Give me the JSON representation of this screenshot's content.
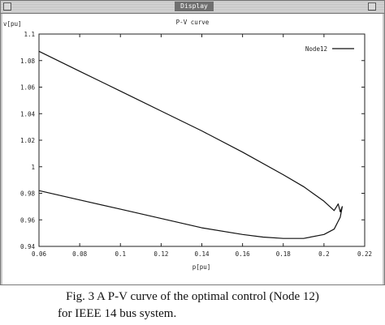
{
  "window": {
    "title": "Display"
  },
  "chart_data": {
    "type": "line",
    "title": "P-V curve",
    "xlabel": "p[pu]",
    "ylabel": "v[pu]",
    "xlim": [
      0.06,
      0.22
    ],
    "ylim": [
      0.94,
      1.1
    ],
    "xticks": [
      0.06,
      0.08,
      0.1,
      0.12,
      0.14,
      0.16,
      0.18,
      0.2,
      0.22
    ],
    "xtick_labels": [
      "0.06",
      "0.08",
      "0.1",
      "0.12",
      "0.14",
      "0.16",
      "0.18",
      "0.2",
      "0.22"
    ],
    "yticks": [
      0.94,
      0.96,
      0.98,
      1.0,
      1.02,
      1.04,
      1.06,
      1.08,
      1.1
    ],
    "ytick_labels": [
      "0.94",
      "0.96",
      "0.98",
      "1",
      "1.02",
      "1.04",
      "1.06",
      "1.08",
      "1.1"
    ],
    "legend_position": "top-right",
    "grid": false,
    "series": [
      {
        "name": "Node12",
        "color": "#111111",
        "x": [
          0.06,
          0.08,
          0.1,
          0.12,
          0.14,
          0.16,
          0.18,
          0.19,
          0.2,
          0.205,
          0.207,
          0.208,
          0.209,
          0.208,
          0.207,
          0.206,
          0.205,
          0.2,
          0.19,
          0.18,
          0.17,
          0.16,
          0.14,
          0.12,
          0.1,
          0.08,
          0.06
        ],
        "y": [
          1.087,
          1.072,
          1.057,
          1.042,
          1.027,
          1.011,
          0.994,
          0.985,
          0.974,
          0.967,
          0.972,
          0.966,
          0.97,
          0.962,
          0.959,
          0.956,
          0.953,
          0.949,
          0.946,
          0.946,
          0.947,
          0.949,
          0.954,
          0.961,
          0.968,
          0.975,
          0.982
        ]
      }
    ]
  },
  "caption": {
    "line1": "Fig. 3 A P-V curve of the optimal control (Node 12)",
    "line2": "for IEEE 14 bus system."
  }
}
